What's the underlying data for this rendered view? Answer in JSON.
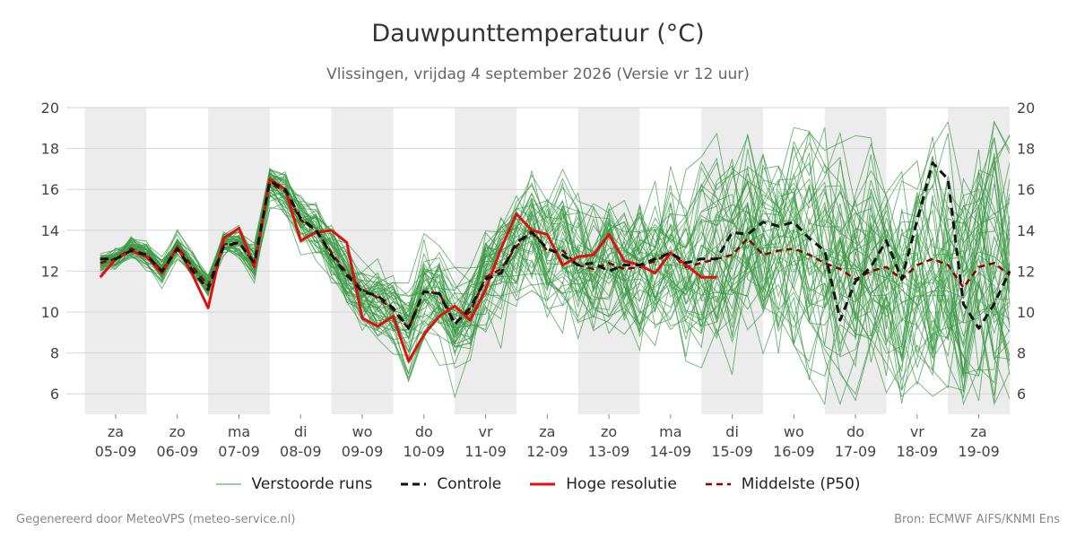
{
  "header": {
    "title": "Dauwpunttemperatuur (°C)",
    "subtitle": "Vlissingen, vrijdag  4 september 2026 (Versie vr 12 uur)"
  },
  "footer": {
    "left": "Gegenereerd door MeteoVPS (meteo-service.nl)",
    "right": "Bron: ECMWF AIFS/KNMI Ens"
  },
  "legend": [
    {
      "label": "Verstoorde runs",
      "color": "#3a9a44",
      "style": "thin"
    },
    {
      "label": "Controle",
      "color": "#111111",
      "style": "dashed"
    },
    {
      "label": "Hoge resolutie",
      "color": "#dd1111",
      "style": "solid"
    },
    {
      "label": "Middelste (P50)",
      "color": "#8b0000",
      "style": "dashed"
    }
  ],
  "chart_data": {
    "type": "line",
    "title": "Dauwpunttemperatuur (°C)",
    "ylim": [
      5,
      20
    ],
    "yticks": [
      6,
      8,
      10,
      12,
      14,
      16,
      18,
      20
    ],
    "y_axis_both_sides": true,
    "x_unit": "days from 05-09 00:00",
    "xlim": [
      -0.8,
      14.5
    ],
    "grid": true,
    "shaded_days": [
      "za 05-09",
      "ma 07-09",
      "wo 09-09",
      "vr 11-09",
      "zo 13-09",
      "di 15-09",
      "do 17-09",
      "za 19-09"
    ],
    "x_ticks": [
      {
        "day": "za",
        "date": "05-09"
      },
      {
        "day": "zo",
        "date": "06-09"
      },
      {
        "day": "ma",
        "date": "07-09"
      },
      {
        "day": "di",
        "date": "08-09"
      },
      {
        "day": "wo",
        "date": "09-09"
      },
      {
        "day": "do",
        "date": "10-09"
      },
      {
        "day": "vr",
        "date": "11-09"
      },
      {
        "day": "za",
        "date": "12-09"
      },
      {
        "day": "zo",
        "date": "13-09"
      },
      {
        "day": "ma",
        "date": "14-09"
      },
      {
        "day": "di",
        "date": "15-09"
      },
      {
        "day": "wo",
        "date": "16-09"
      },
      {
        "day": "do",
        "date": "17-09"
      },
      {
        "day": "vr",
        "date": "18-09"
      },
      {
        "day": "za",
        "date": "19-09"
      }
    ],
    "series": [
      {
        "name": "Controle",
        "color": "#111111",
        "dashed": true,
        "x": [
          -0.25,
          0,
          0.25,
          0.5,
          0.75,
          1,
          1.25,
          1.5,
          1.75,
          2,
          2.25,
          2.5,
          2.75,
          3,
          3.25,
          3.5,
          3.75,
          4,
          4.25,
          4.5,
          4.75,
          5,
          5.25,
          5.5,
          5.75,
          6,
          6.25,
          6.5,
          6.75,
          7,
          7.25,
          7.5,
          7.75,
          8,
          8.25,
          8.5,
          8.75,
          9,
          9.25,
          9.5,
          9.75,
          10,
          10.25,
          10.5,
          10.75,
          11,
          11.25,
          11.5,
          11.75,
          12,
          12.25,
          12.5,
          12.75,
          13,
          13.25,
          13.5,
          13.75,
          14,
          14.25,
          14.5
        ],
        "values": [
          12.6,
          12.6,
          13.0,
          12.8,
          12.0,
          13.1,
          12.0,
          11.1,
          13.2,
          13.4,
          12.4,
          16.4,
          16.0,
          14.6,
          14.0,
          12.8,
          11.8,
          11.0,
          10.8,
          10.2,
          9.2,
          11.0,
          10.9,
          9.4,
          10.2,
          11.6,
          11.9,
          13.4,
          13.9,
          13.1,
          12.8,
          12.3,
          12.4,
          12.0,
          12.3,
          12.3,
          12.6,
          12.9,
          12.4,
          12.6,
          12.6,
          13.9,
          13.8,
          14.4,
          14.2,
          14.4,
          13.6,
          13.0,
          9.6,
          11.5,
          12.2,
          13.5,
          11.6,
          14.5,
          17.3,
          16.5,
          10.4,
          9.2,
          10.4,
          12.0
        ]
      },
      {
        "name": "Hoge resolutie",
        "color": "#dd1111",
        "dashed": false,
        "x": [
          -0.25,
          0,
          0.25,
          0.5,
          0.75,
          1,
          1.25,
          1.5,
          1.75,
          2,
          2.25,
          2.5,
          2.75,
          3,
          3.25,
          3.5,
          3.75,
          4,
          4.25,
          4.5,
          4.75,
          5,
          5.25,
          5.5,
          5.75,
          6,
          6.25,
          6.5,
          6.75,
          7,
          7.25,
          7.5,
          7.75,
          8,
          8.25,
          8.5,
          8.75,
          9,
          9.25,
          9.5,
          9.75
        ],
        "values": [
          11.7,
          12.6,
          13.0,
          12.7,
          11.9,
          13.2,
          11.8,
          10.2,
          13.6,
          14.1,
          12.2,
          16.5,
          16.0,
          13.5,
          13.9,
          14.0,
          13.4,
          9.7,
          9.3,
          9.8,
          7.6,
          8.9,
          9.8,
          10.3,
          9.6,
          11.1,
          13.1,
          14.8,
          14.0,
          13.8,
          12.3,
          12.7,
          12.8,
          13.8,
          12.5,
          12.3,
          11.9,
          12.9,
          12.3,
          11.7,
          11.7
        ]
      },
      {
        "name": "Middelste (P50)",
        "color": "#8b0000",
        "dashed": true,
        "x": [
          -0.25,
          0,
          0.25,
          0.5,
          0.75,
          1,
          1.25,
          1.5,
          1.75,
          2,
          2.25,
          2.5,
          2.75,
          3,
          3.25,
          3.5,
          3.75,
          4,
          4.25,
          4.5,
          4.75,
          5,
          5.25,
          5.5,
          5.75,
          6,
          6.25,
          6.5,
          6.75,
          7,
          7.25,
          7.5,
          7.75,
          8,
          8.25,
          8.5,
          8.75,
          9,
          9.25,
          9.5,
          9.75,
          10,
          10.25,
          10.5,
          10.75,
          11,
          11.25,
          11.5,
          11.75,
          12,
          12.25,
          12.5,
          12.75,
          13,
          13.25,
          13.5,
          13.75,
          14,
          14.25,
          14.5
        ],
        "values": [
          12.4,
          12.6,
          13.1,
          12.8,
          12.0,
          13.2,
          12.2,
          11.3,
          13.3,
          13.4,
          12.4,
          16.3,
          15.9,
          14.5,
          14.0,
          12.9,
          11.9,
          11.1,
          10.7,
          10.1,
          9.2,
          11.0,
          10.9,
          9.5,
          10.0,
          11.7,
          12.1,
          13.2,
          14.0,
          13.0,
          13.0,
          12.3,
          12.1,
          12.4,
          12.1,
          12.2,
          12.5,
          12.9,
          12.2,
          12.4,
          12.6,
          12.8,
          13.6,
          12.8,
          13.0,
          13.1,
          12.8,
          12.4,
          12.1,
          11.6,
          12.0,
          12.2,
          11.6,
          12.3,
          12.6,
          12.3,
          11.2,
          12.2,
          12.4,
          11.8
        ]
      }
    ],
    "ensemble": {
      "name": "Verstoorde runs",
      "color": "#3a9a44",
      "count": 50,
      "x_start": -0.25,
      "x_step": 0.25,
      "note_values_are_in_chart_data": true,
      "members": []
    }
  }
}
